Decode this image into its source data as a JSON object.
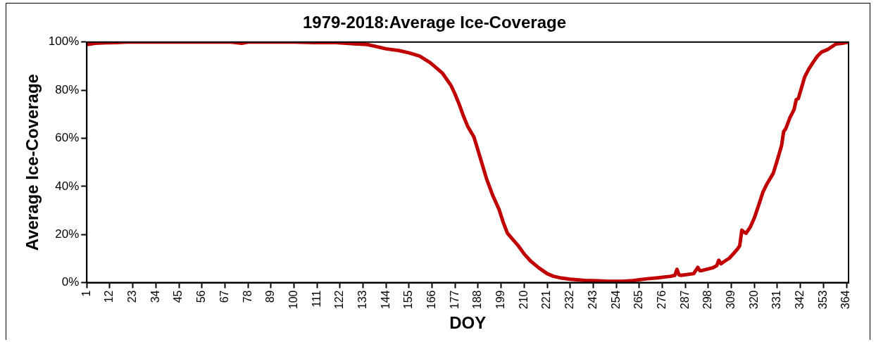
{
  "chart_data": {
    "type": "line",
    "title": "1979-2018:Average Ice-Coverage",
    "xlabel": "DOY",
    "ylabel": "Average Ice-Coverage",
    "x": [
      1,
      5,
      10,
      15,
      20,
      30,
      40,
      50,
      60,
      70,
      75,
      78,
      85,
      100,
      110,
      120,
      125,
      130,
      135,
      140,
      144,
      150,
      155,
      160,
      165,
      168,
      171,
      173,
      175,
      177,
      179,
      181,
      183,
      186,
      188,
      190,
      192,
      195,
      198,
      200,
      202,
      204,
      207,
      210,
      213,
      217,
      221,
      224,
      227,
      232,
      239,
      245,
      250,
      257,
      262,
      268,
      274,
      280,
      282,
      283,
      284,
      285,
      291,
      292,
      293,
      294,
      295,
      300,
      302,
      303,
      304,
      306,
      308,
      310,
      312,
      313,
      314,
      315,
      316,
      318,
      320,
      322,
      324,
      326,
      329,
      331,
      333,
      334,
      335,
      337,
      339,
      340,
      341,
      344,
      346,
      348,
      350,
      352,
      355,
      359,
      362,
      365
    ],
    "series": [
      {
        "color": "#c00000",
        "values": [
          99.0,
          99.5,
          99.7,
          99.8,
          100,
          100,
          100,
          100,
          100,
          100,
          99.5,
          100,
          100,
          100,
          99.8,
          99.8,
          99.5,
          99.2,
          99.0,
          98.0,
          97.2,
          96.5,
          95.5,
          94.2,
          91.5,
          89.3,
          87.0,
          84.5,
          82.0,
          78.3,
          74.0,
          69.2,
          65.0,
          60.5,
          54.8,
          49.0,
          43.2,
          36.2,
          30.4,
          25.0,
          20.5,
          18.5,
          15.5,
          11.9,
          9.0,
          6.1,
          3.7,
          2.6,
          2.0,
          1.4,
          0.9,
          0.7,
          0.5,
          0.5,
          0.8,
          1.5,
          2.0,
          2.6,
          3.0,
          5.5,
          3.2,
          3.0,
          3.7,
          5.0,
          6.3,
          4.9,
          5.0,
          6.1,
          7.0,
          9.3,
          7.8,
          9.0,
          10.1,
          12.0,
          14.0,
          15.3,
          21.8,
          21.0,
          20.5,
          23.0,
          26.9,
          32.0,
          37.4,
          41.0,
          45.4,
          51.0,
          57.0,
          62.8,
          64.0,
          68.6,
          72.0,
          76.1,
          76.5,
          85.4,
          88.8,
          91.5,
          94.0,
          95.8,
          96.9,
          99.2,
          99.5,
          100
        ]
      }
    ],
    "xlim": [
      1,
      365
    ],
    "xticks": [
      1,
      12,
      23,
      34,
      45,
      56,
      67,
      78,
      89,
      100,
      111,
      122,
      133,
      144,
      155,
      166,
      177,
      188,
      199,
      210,
      221,
      232,
      243,
      254,
      265,
      276,
      287,
      298,
      309,
      320,
      331,
      342,
      353,
      364
    ],
    "ylim": [
      0,
      100
    ],
    "yticks": [
      {
        "value": 0,
        "label": "0%"
      },
      {
        "value": 20,
        "label": "20%"
      },
      {
        "value": 40,
        "label": "40%"
      },
      {
        "value": 60,
        "label": "60%"
      },
      {
        "value": 80,
        "label": "80%"
      },
      {
        "value": 100,
        "label": "100%"
      }
    ],
    "grid": false,
    "legend": false,
    "marker": "none",
    "line_style": "solid"
  }
}
